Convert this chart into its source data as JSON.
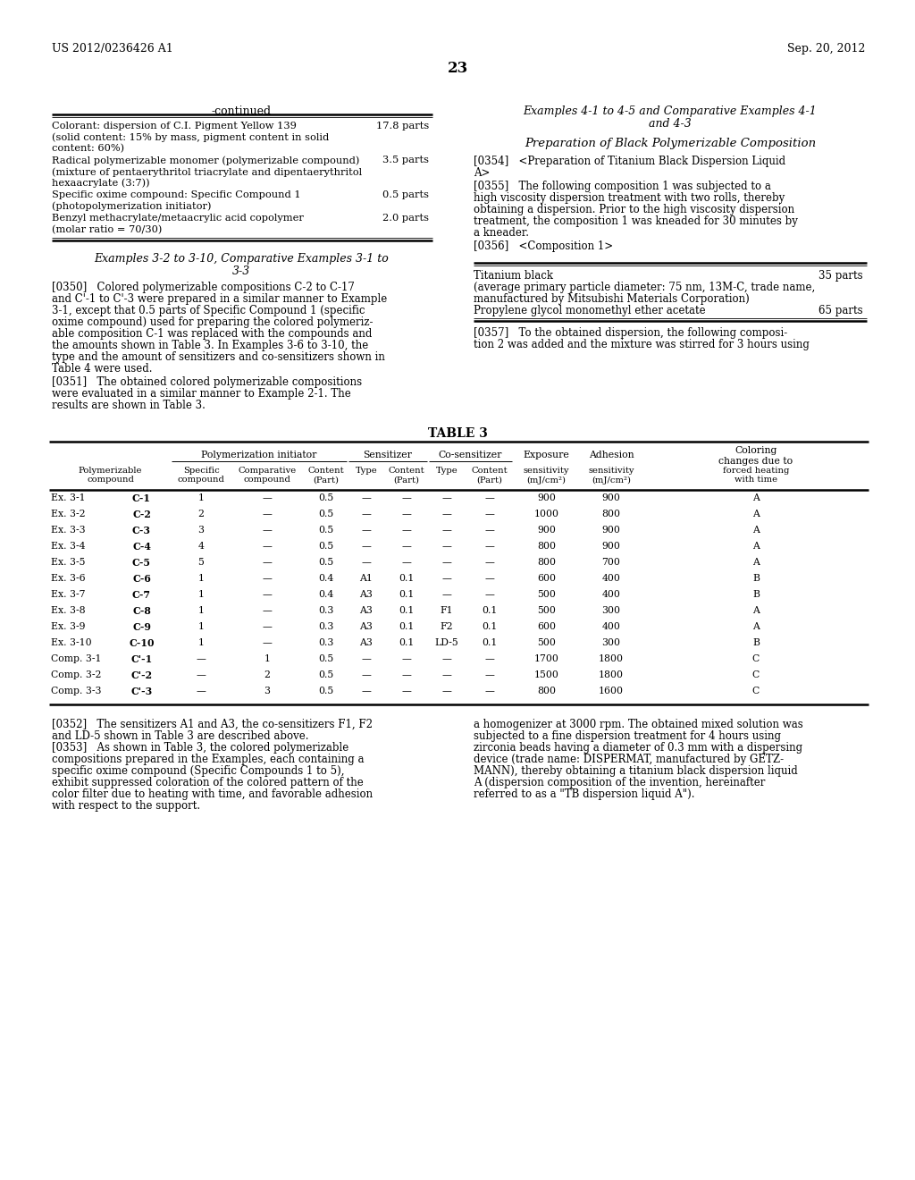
{
  "header_left": "US 2012/0236426 A1",
  "header_right": "Sep. 20, 2012",
  "page_number": "23",
  "bg_color": "#ffffff",
  "left_table_title": "-continued",
  "left_table_rows": [
    [
      "Colorant: dispersion of C.I. Pigment Yellow 139\n(solid content: 15% by mass, pigment content in solid\ncontent: 60%)",
      "17.8 parts"
    ],
    [
      "Radical polymerizable monomer (polymerizable compound)\n(mixture of pentaerythritol triacrylate and dipentaerythritol\nhexaacrylate (3:7))",
      "3.5 parts"
    ],
    [
      "Specific oxime compound: Specific Compound 1\n(photopolymerization initiator)",
      "0.5 parts"
    ],
    [
      "Benzyl methacrylate/metaacrylic acid copolymer\n(molar ratio = 70/30)",
      "2.0 parts"
    ]
  ],
  "left_section_title_line1": "Examples 3-2 to 3-10, Comparative Examples 3-1 to",
  "left_section_title_line2": "3-3",
  "left_para_0350_lines": [
    "[0350]   Colored polymerizable compositions C-2 to C-17",
    "and C'-1 to C'-3 were prepared in a similar manner to Example",
    "3-1, except that 0.5 parts of Specific Compound 1 (specific",
    "oxime compound) used for preparing the colored polymeriz-",
    "able composition C-1 was replaced with the compounds and",
    "the amounts shown in Table 3. In Examples 3-6 to 3-10, the",
    "type and the amount of sensitizers and co-sensitizers shown in",
    "Table 4 were used."
  ],
  "left_para_0351_lines": [
    "[0351]   The obtained colored polymerizable compositions",
    "were evaluated in a similar manner to Example 2-1. The",
    "results are shown in Table 3."
  ],
  "right_section_title_1_line1": "Examples 4-1 to 4-5 and Comparative Examples 4-1",
  "right_section_title_1_line2": "and 4-3",
  "right_section_title_2": "Preparation of Black Polymerizable Composition",
  "right_para_0354_lines": [
    "[0354]   <Preparation of Titanium Black Dispersion Liquid",
    "A>"
  ],
  "right_para_0355_lines": [
    "[0355]   The following composition 1 was subjected to a",
    "high viscosity dispersion treatment with two rolls, thereby",
    "obtaining a dispersion. Prior to the high viscosity dispersion",
    "treatment, the composition 1 was kneaded for 30 minutes by",
    "a kneader."
  ],
  "right_para_0356_lines": [
    "[0356]   <Composition 1>"
  ],
  "right_table_rows": [
    [
      "Titanium black",
      "35 parts"
    ],
    [
      "(average primary particle diameter: 75 nm, 13M-C, trade name,",
      ""
    ],
    [
      "manufactured by Mitsubishi Materials Corporation)",
      ""
    ],
    [
      "Propylene glycol monomethyl ether acetate",
      "65 parts"
    ]
  ],
  "right_para_0357_lines": [
    "[0357]   To the obtained dispersion, the following composi-",
    "tion 2 was added and the mixture was stirred for 3 hours using"
  ],
  "table3_title": "TABLE 3",
  "table3_data": [
    [
      "Ex. 3-1",
      "C-1",
      "1",
      "—",
      "0.5",
      "—",
      "—",
      "—",
      "—",
      "900",
      "900",
      "A"
    ],
    [
      "Ex. 3-2",
      "C-2",
      "2",
      "—",
      "0.5",
      "—",
      "—",
      "—",
      "—",
      "1000",
      "800",
      "A"
    ],
    [
      "Ex. 3-3",
      "C-3",
      "3",
      "—",
      "0.5",
      "—",
      "—",
      "—",
      "—",
      "900",
      "900",
      "A"
    ],
    [
      "Ex. 3-4",
      "C-4",
      "4",
      "—",
      "0.5",
      "—",
      "—",
      "—",
      "—",
      "800",
      "900",
      "A"
    ],
    [
      "Ex. 3-5",
      "C-5",
      "5",
      "—",
      "0.5",
      "—",
      "—",
      "—",
      "—",
      "800",
      "700",
      "A"
    ],
    [
      "Ex. 3-6",
      "C-6",
      "1",
      "—",
      "0.4",
      "A1",
      "0.1",
      "—",
      "—",
      "600",
      "400",
      "B"
    ],
    [
      "Ex. 3-7",
      "C-7",
      "1",
      "—",
      "0.4",
      "A3",
      "0.1",
      "—",
      "—",
      "500",
      "400",
      "B"
    ],
    [
      "Ex. 3-8",
      "C-8",
      "1",
      "—",
      "0.3",
      "A3",
      "0.1",
      "F1",
      "0.1",
      "500",
      "300",
      "A"
    ],
    [
      "Ex. 3-9",
      "C-9",
      "1",
      "—",
      "0.3",
      "A3",
      "0.1",
      "F2",
      "0.1",
      "600",
      "400",
      "A"
    ],
    [
      "Ex. 3-10",
      "C-10",
      "1",
      "—",
      "0.3",
      "A3",
      "0.1",
      "LD-5",
      "0.1",
      "500",
      "300",
      "B"
    ],
    [
      "Comp. 3-1",
      "C'-1",
      "—",
      "1",
      "0.5",
      "—",
      "—",
      "—",
      "—",
      "1700",
      "1800",
      "C"
    ],
    [
      "Comp. 3-2",
      "C'-2",
      "—",
      "2",
      "0.5",
      "—",
      "—",
      "—",
      "—",
      "1500",
      "1800",
      "C"
    ],
    [
      "Comp. 3-3",
      "C'-3",
      "—",
      "3",
      "0.5",
      "—",
      "—",
      "—",
      "—",
      "800",
      "1600",
      "C"
    ]
  ],
  "bottom_left_lines": [
    "[0352]   The sensitizers A1 and A3, the co-sensitizers F1, F2",
    "and LD-5 shown in Table 3 are described above.",
    "[0353]   As shown in Table 3, the colored polymerizable",
    "compositions prepared in the Examples, each containing a",
    "specific oxime compound (Specific Compounds 1 to 5),",
    "exhibit suppressed coloration of the colored pattern of the",
    "color filter due to heating with time, and favorable adhesion",
    "with respect to the support."
  ],
  "bottom_right_lines": [
    "a homogenizer at 3000 rpm. The obtained mixed solution was",
    "subjected to a fine dispersion treatment for 4 hours using",
    "zirconia beads having a diameter of 0.3 mm with a dispersing",
    "device (trade name: DISPERMAT, manufactured by GETZ-",
    "MANN), thereby obtaining a titanium black dispersion liquid",
    "A (dispersion composition of the invention, hereinafter",
    "referred to as a \"TB dispersion liquid A\")."
  ]
}
